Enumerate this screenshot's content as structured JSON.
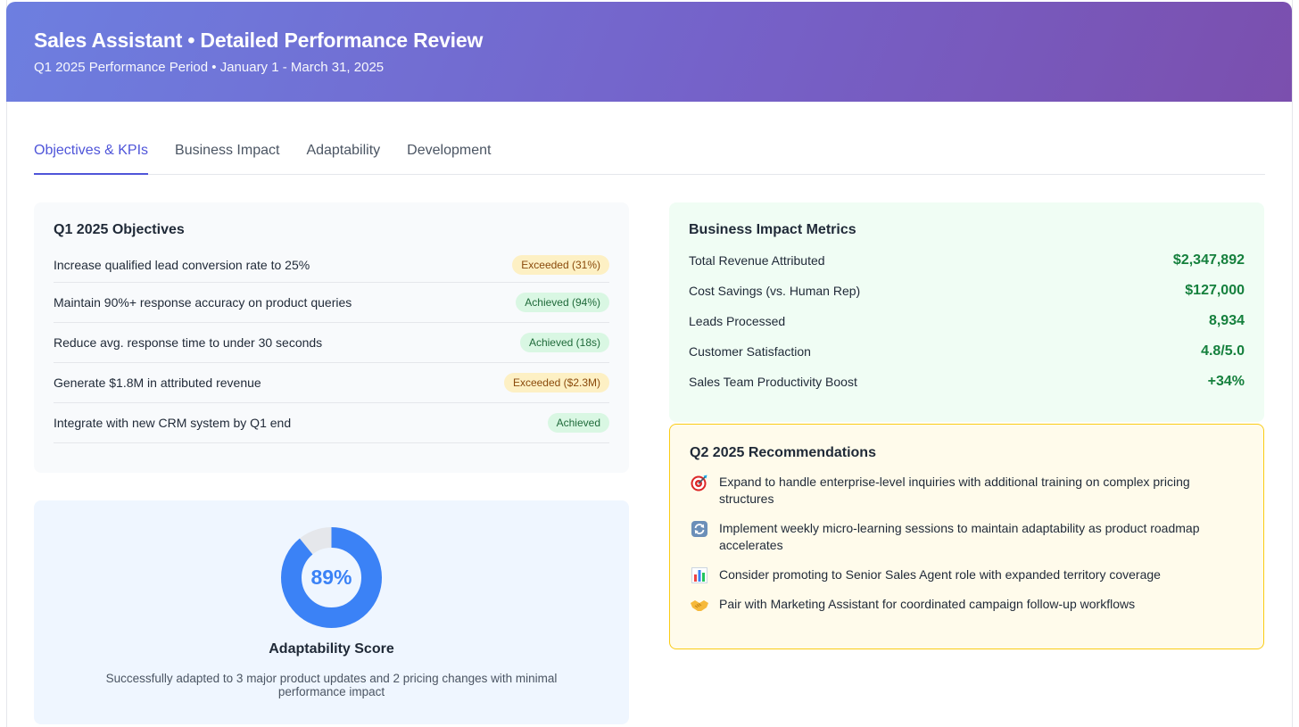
{
  "header": {
    "title": "Sales Assistant • Detailed Performance Review",
    "subtitle": "Q1 2025 Performance Period • January 1 - March 31, 2025"
  },
  "tabs": [
    {
      "label": "Objectives & KPIs",
      "active": true
    },
    {
      "label": "Business Impact",
      "active": false
    },
    {
      "label": "Adaptability",
      "active": false
    },
    {
      "label": "Development",
      "active": false
    }
  ],
  "objectives": {
    "title": "Q1 2025 Objectives",
    "items": [
      {
        "text": "Increase qualified lead conversion rate to 25%",
        "status": "Exceeded (31%)",
        "kind": "exceeded"
      },
      {
        "text": "Maintain 90%+ response accuracy on product queries",
        "status": "Achieved (94%)",
        "kind": "achieved"
      },
      {
        "text": "Reduce avg. response time to under 30 seconds",
        "status": "Achieved (18s)",
        "kind": "achieved"
      },
      {
        "text": "Generate $1.8M in attributed revenue",
        "status": "Exceeded ($2.3M)",
        "kind": "exceeded"
      },
      {
        "text": "Integrate with new CRM system by Q1 end",
        "status": "Achieved",
        "kind": "achieved"
      }
    ]
  },
  "adaptability": {
    "score_label": "89%",
    "score_fraction": 0.89,
    "title": "Adaptability Score",
    "description": "Successfully adapted to 3 major product updates and 2 pricing changes with minimal performance impact",
    "ring_color": "#3b82f6",
    "track_color": "#e5e7eb"
  },
  "impact": {
    "title": "Business Impact Metrics",
    "metrics": [
      {
        "label": "Total Revenue Attributed",
        "value": "$2,347,892"
      },
      {
        "label": "Cost Savings (vs. Human Rep)",
        "value": "$127,000"
      },
      {
        "label": "Leads Processed",
        "value": "8,934"
      },
      {
        "label": "Customer Satisfaction",
        "value": "4.8/5.0"
      },
      {
        "label": "Sales Team Productivity Boost",
        "value": "+34%"
      }
    ]
  },
  "recommendations": {
    "title": "Q2 2025 Recommendations",
    "items": [
      {
        "icon": "target-icon",
        "text": "Expand to handle enterprise-level inquiries with additional training on complex pricing structures"
      },
      {
        "icon": "refresh-icon",
        "text": "Implement weekly micro-learning sessions to maintain adaptability as product roadmap accelerates"
      },
      {
        "icon": "bar-chart-icon",
        "text": "Consider promoting to Senior Sales Agent role with expanded territory coverage"
      },
      {
        "icon": "handshake-icon",
        "text": "Pair with Marketing Assistant for coordinated campaign follow-up workflows"
      }
    ]
  },
  "colors": {
    "accent": "#4f55d9",
    "exceeded_bg": "#fdf0c4",
    "achieved_bg": "#d9f7e3",
    "metric_value": "#15803d"
  }
}
